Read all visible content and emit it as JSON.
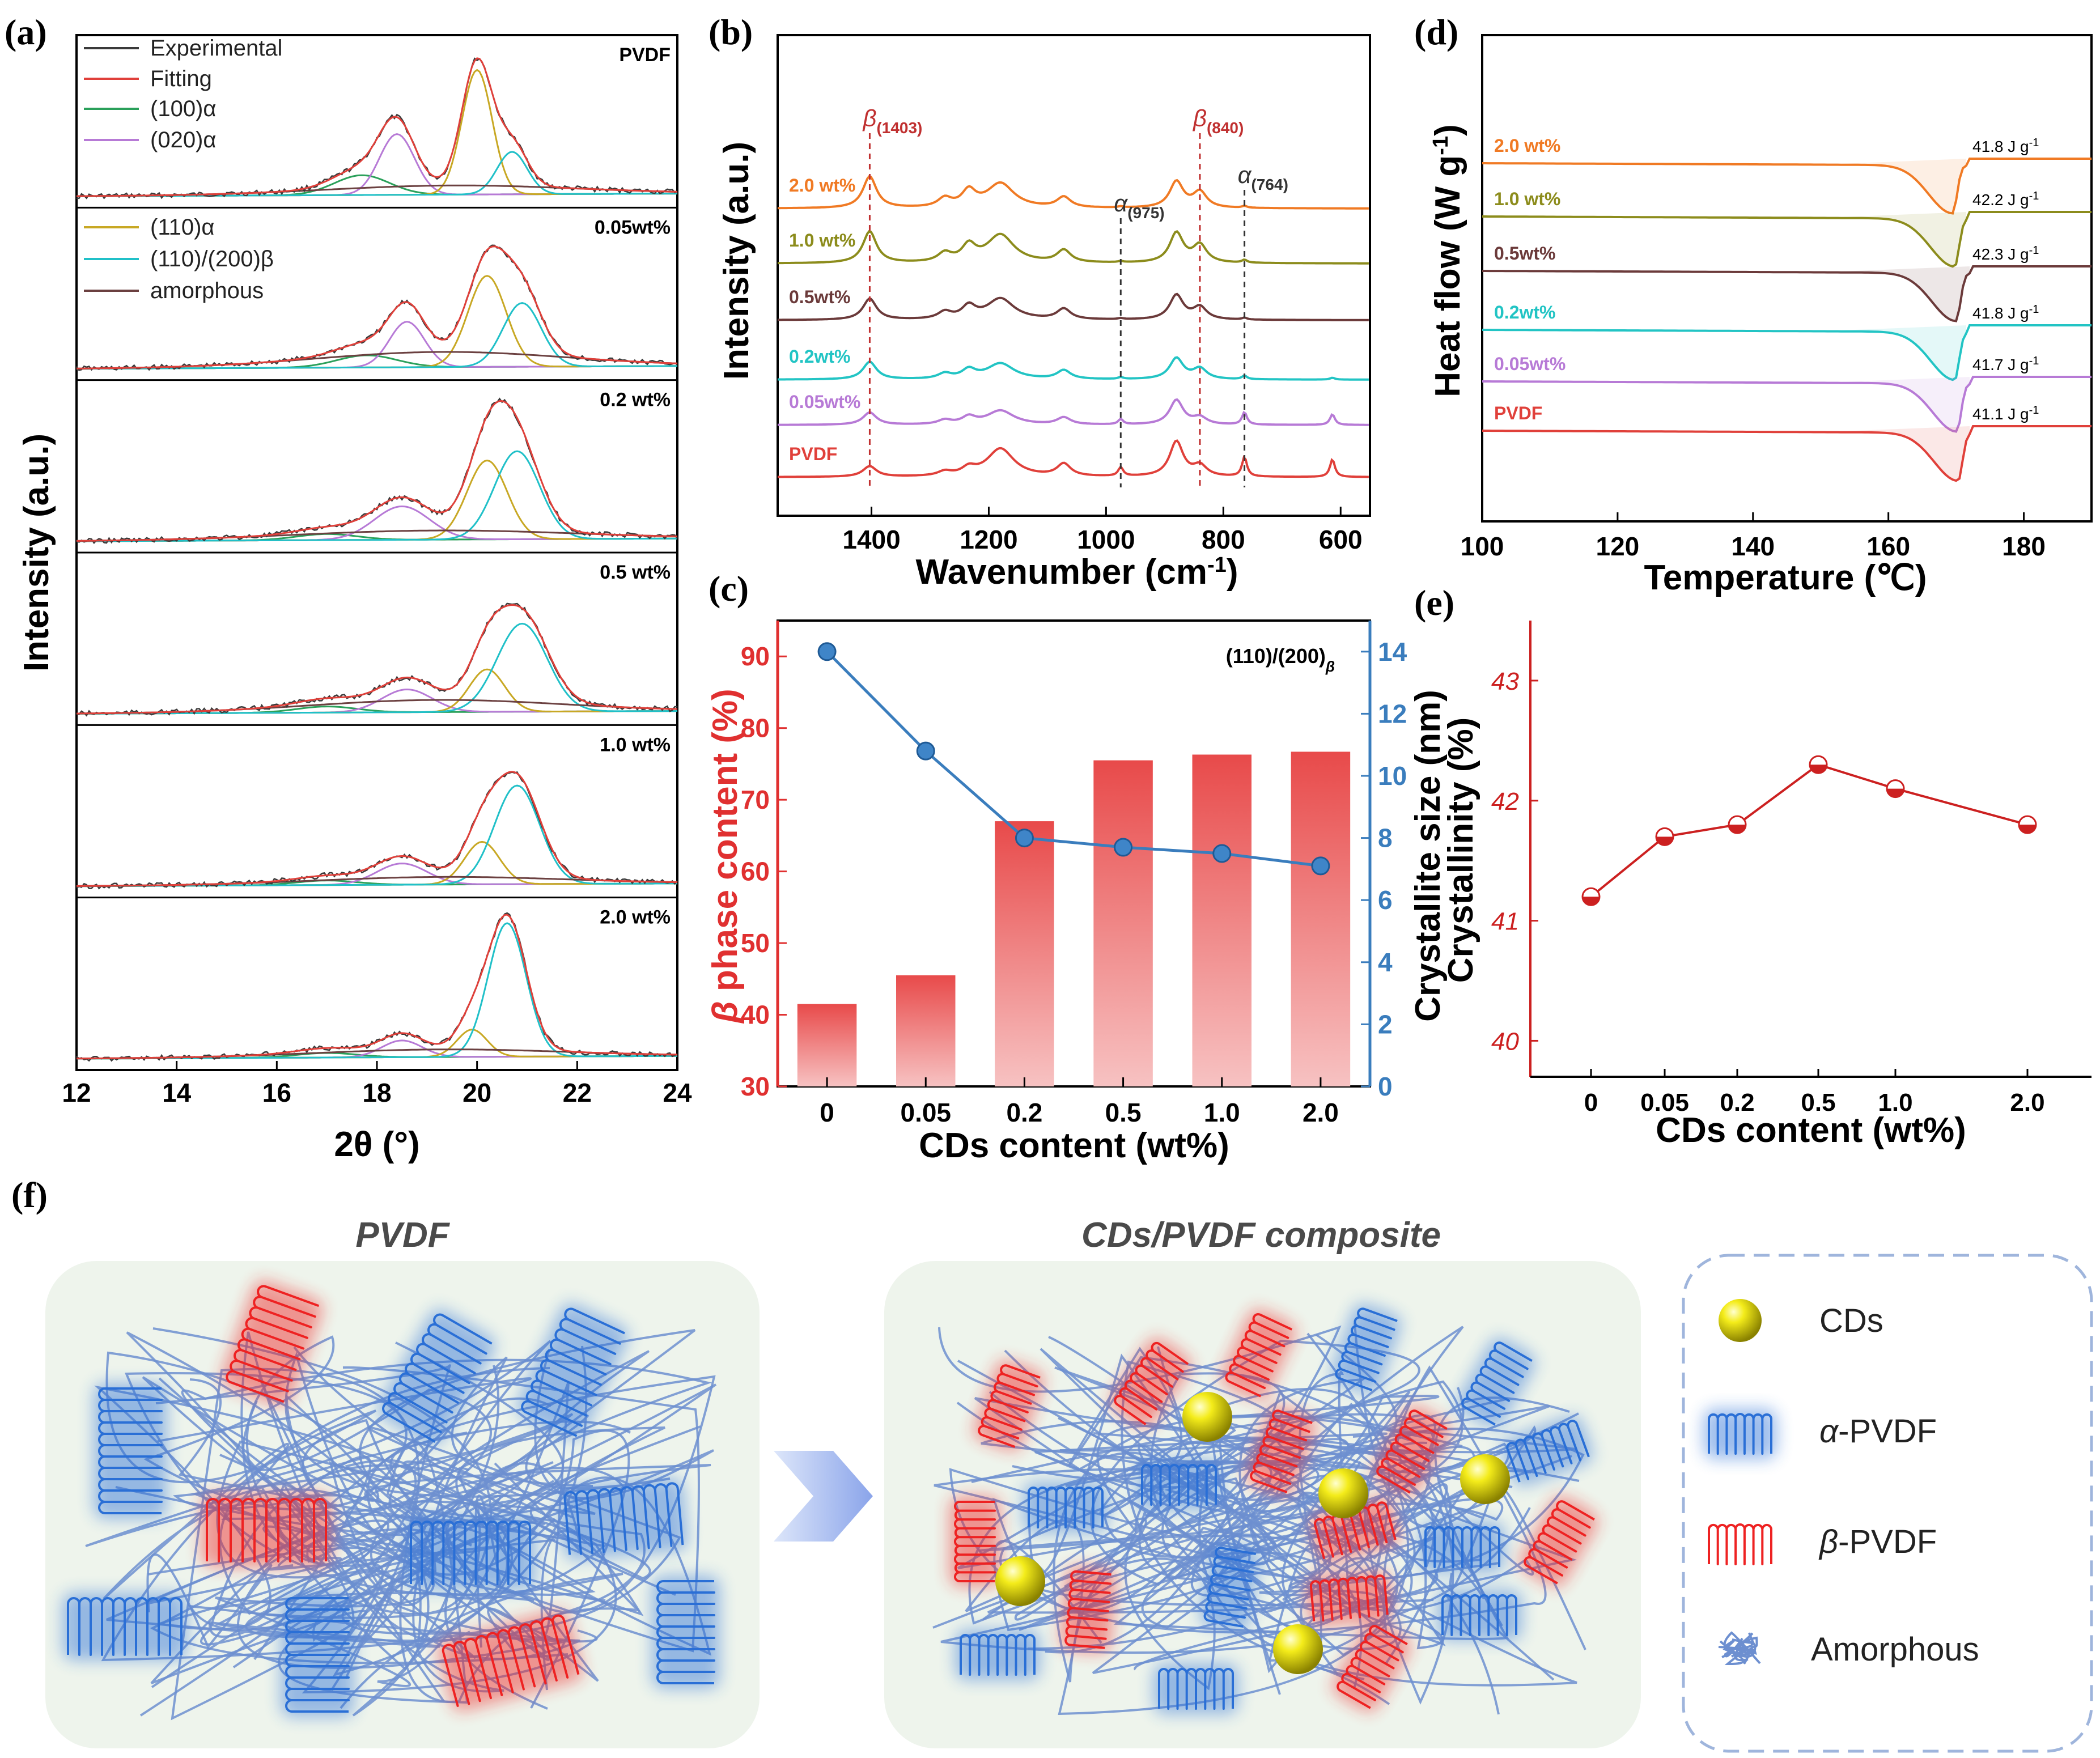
{
  "panel_labels": {
    "a": "(a)",
    "b": "(b)",
    "c": "(c)",
    "d": "(d)",
    "e": "(e)",
    "f": "(f)"
  },
  "colors": {
    "experimental": "#3a3a3a",
    "fitting": "#e0403a",
    "alpha100": "#2aa05a",
    "alpha020": "#b77ad6",
    "alpha110": "#c8a824",
    "beta": "#20c0c8",
    "amorphous": "#6b4040",
    "s2_0": "#f07a24",
    "s1_0": "#8c8c1c",
    "s0_5": "#6b3a3a",
    "s0_2": "#22c4c4",
    "s0_05": "#b77ad6",
    "s0": "#e0403a",
    "bar": "#e85555",
    "line": "#3a7dbd",
    "cryst": "#cc2020",
    "alpha_blue": "#2a6fd6",
    "beta_red": "#ee2222",
    "amorph": "#6d8fd0"
  },
  "chart_data": [
    {
      "id": "a",
      "type": "line",
      "xlabel": "2θ (°)",
      "ylabel": "Intensity (a.u.)",
      "xlim": [
        12,
        24
      ],
      "xticks": [
        "12",
        "14",
        "16",
        "18",
        "20",
        "22",
        "24"
      ],
      "legend": [
        "Experimental",
        "Fitting",
        "(100)α",
        "(020)α",
        "(110)α",
        "(110)/(200)β",
        "amorphous"
      ],
      "samples": [
        {
          "label": "PVDF",
          "peaks": {
            "alpha100": [
              17.7,
              0.13,
              0.55
            ],
            "alpha020": [
              18.4,
              0.4,
              0.35
            ],
            "alpha110": [
              20.0,
              0.82,
              0.3
            ],
            "beta": [
              20.7,
              0.28,
              0.3
            ],
            "amorphous": [
              19.5,
              0.06,
              2.5
            ]
          }
        },
        {
          "label": "0.05wt%",
          "peaks": {
            "alpha100": [
              17.8,
              0.08,
              0.6
            ],
            "alpha020": [
              18.6,
              0.3,
              0.35
            ],
            "alpha110": [
              20.2,
              0.6,
              0.38
            ],
            "beta": [
              20.9,
              0.42,
              0.38
            ],
            "amorphous": [
              19.3,
              0.1,
              2.5
            ]
          }
        },
        {
          "label": "0.2 wt%",
          "peaks": {
            "alpha100": [
              17.0,
              0.04,
              0.6
            ],
            "alpha020": [
              18.5,
              0.22,
              0.55
            ],
            "alpha110": [
              20.2,
              0.52,
              0.4
            ],
            "beta": [
              20.8,
              0.58,
              0.45
            ],
            "amorphous": [
              19.2,
              0.06,
              2.8
            ]
          }
        },
        {
          "label": "0.5 wt%",
          "peaks": {
            "alpha100": [
              17.0,
              0.04,
              0.6
            ],
            "alpha020": [
              18.6,
              0.15,
              0.5
            ],
            "alpha110": [
              20.2,
              0.28,
              0.35
            ],
            "beta": [
              20.9,
              0.58,
              0.5
            ],
            "amorphous": [
              19.2,
              0.08,
              2.5
            ]
          }
        },
        {
          "label": "1.0 wt%",
          "peaks": {
            "alpha100": [
              17.0,
              0.03,
              0.6
            ],
            "alpha020": [
              18.5,
              0.14,
              0.5
            ],
            "alpha110": [
              20.1,
              0.28,
              0.35
            ],
            "beta": [
              20.8,
              0.65,
              0.45
            ],
            "amorphous": [
              19.3,
              0.05,
              2.5
            ]
          }
        },
        {
          "label": "2.0 wt%",
          "peaks": {
            "alpha100": [
              17.0,
              0.03,
              0.6
            ],
            "alpha020": [
              18.5,
              0.11,
              0.4
            ],
            "alpha110": [
              19.9,
              0.18,
              0.3
            ],
            "beta": [
              20.6,
              0.88,
              0.38
            ],
            "amorphous": [
              19.3,
              0.05,
              2.5
            ]
          }
        }
      ]
    },
    {
      "id": "b",
      "type": "line",
      "xlabel": "Wavenumber (cm",
      "xlabel_sup": "-1",
      "xlabel_end": ")",
      "ylabel": "Intensity (a.u.)",
      "xlim": [
        1560,
        550
      ],
      "xticks": [
        1400,
        1200,
        1000,
        800,
        600
      ],
      "series": [
        "2.0 wt%",
        "1.0 wt%",
        "0.5wt%",
        "0.2wt%",
        "0.05wt%",
        "PVDF"
      ],
      "markers": [
        {
          "base": "β",
          "sub": "(1403)",
          "x": 1403,
          "color": "red"
        },
        {
          "base": "α",
          "sub": "(975)",
          "x": 975,
          "color": "black"
        },
        {
          "base": "β",
          "sub": "(840)",
          "x": 840,
          "color": "red"
        },
        {
          "base": "α",
          "sub": "(764)",
          "x": 764,
          "color": "black"
        }
      ]
    },
    {
      "id": "c",
      "type": "bar",
      "categories": [
        "0",
        "0.05",
        "0.2",
        "0.5",
        "1.0",
        "2.0"
      ],
      "values": [
        41.5,
        45.5,
        67,
        75.5,
        76.3,
        76.7
      ],
      "ylim": [
        30,
        95
      ],
      "yticks": [
        30,
        40,
        50,
        60,
        70,
        80,
        90
      ],
      "line_values": [
        14.0,
        10.8,
        8.0,
        7.7,
        7.5,
        7.1
      ],
      "y2lim": [
        0,
        15
      ],
      "y2ticks": [
        0,
        2,
        4,
        6,
        8,
        10,
        12,
        14
      ],
      "xlabel": "CDs content (wt%)",
      "ylabel_prefix": "β",
      "ylabel": " phase content (%)",
      "y2label": "Crystallite size (nm)",
      "annotation": "(110)/(200)",
      "annotation_sub": "β"
    },
    {
      "id": "d",
      "type": "line",
      "xlabel": "Temperature (℃)",
      "ylabel": "Heat flow (W g",
      "ylabel_sup": "-1",
      "ylabel_end": ")",
      "xlim": [
        100,
        190
      ],
      "xticks": [
        100,
        120,
        140,
        160,
        180
      ],
      "series": [
        {
          "name": "2.0 wt%",
          "enthalpy": "41.8 J g",
          "peak": 169.5
        },
        {
          "name": "1.0 wt%",
          "enthalpy": "42.2 J g",
          "peak": 169.8
        },
        {
          "name": "0.5wt%",
          "enthalpy": "42.3 J g",
          "peak": 170.0
        },
        {
          "name": "0.2wt%",
          "enthalpy": "41.8 J g",
          "peak": 169.8
        },
        {
          "name": "0.05wt%",
          "enthalpy": "41.7 J g",
          "peak": 170.1
        },
        {
          "name": "PVDF",
          "enthalpy": "41.1 J g",
          "peak": 170.3
        }
      ],
      "enthalpy_sup": "-1"
    },
    {
      "id": "e",
      "type": "scatter",
      "categories": [
        "0",
        "0.05",
        "0.2",
        "0.5",
        "1.0",
        "2.0"
      ],
      "values": [
        41.2,
        41.7,
        41.8,
        42.3,
        42.1,
        41.8
      ],
      "ylim": [
        39.7,
        43.5
      ],
      "yticks": [
        40,
        41,
        42,
        43
      ],
      "xlabel": "CDs content (wt%)",
      "ylabel": "Crystallinity (%)"
    }
  ],
  "schematic": {
    "left_title": "PVDF",
    "right_title": "CDs/PVDF composite",
    "legend": [
      "CDs",
      "α-PVDF",
      "β-PVDF",
      "Amorphous"
    ],
    "legend_alpha_prefix": "α",
    "legend_beta_prefix": "β",
    "legend_suffix": "-PVDF"
  }
}
